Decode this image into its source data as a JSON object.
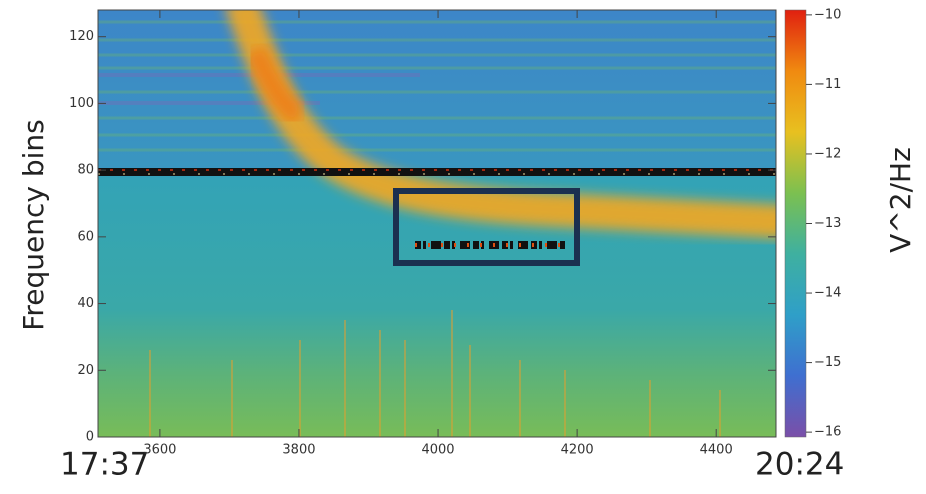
{
  "chart_data": {
    "type": "spectrogram",
    "ylabel": "Frequency bins",
    "xlim": [
      3511,
      4486
    ],
    "xticks": [
      3600,
      3800,
      4000,
      4200,
      4400
    ],
    "ylim": [
      0,
      128
    ],
    "yticks": [
      0,
      20,
      40,
      60,
      80,
      100,
      120
    ],
    "colorbar": {
      "label": "V^2/Hz",
      "lim": [
        -16.07,
        -9.93
      ],
      "ticks": [
        {
          "value": -10,
          "label": "−10"
        },
        {
          "value": -11,
          "label": "−11"
        },
        {
          "value": -12,
          "label": "−12"
        },
        {
          "value": -13,
          "label": "−13"
        },
        {
          "value": -14,
          "label": "−14"
        },
        {
          "value": -15,
          "label": "−15"
        },
        {
          "value": -16,
          "label": "−16"
        }
      ],
      "colormap": [
        "#7a4fa8",
        "#3f6fd0",
        "#2f9fc8",
        "#3fb0a0",
        "#7cc050",
        "#e8c020",
        "#f08a10",
        "#e02010"
      ]
    },
    "start_time": "17:37",
    "end_time": "20:24"
  }
}
